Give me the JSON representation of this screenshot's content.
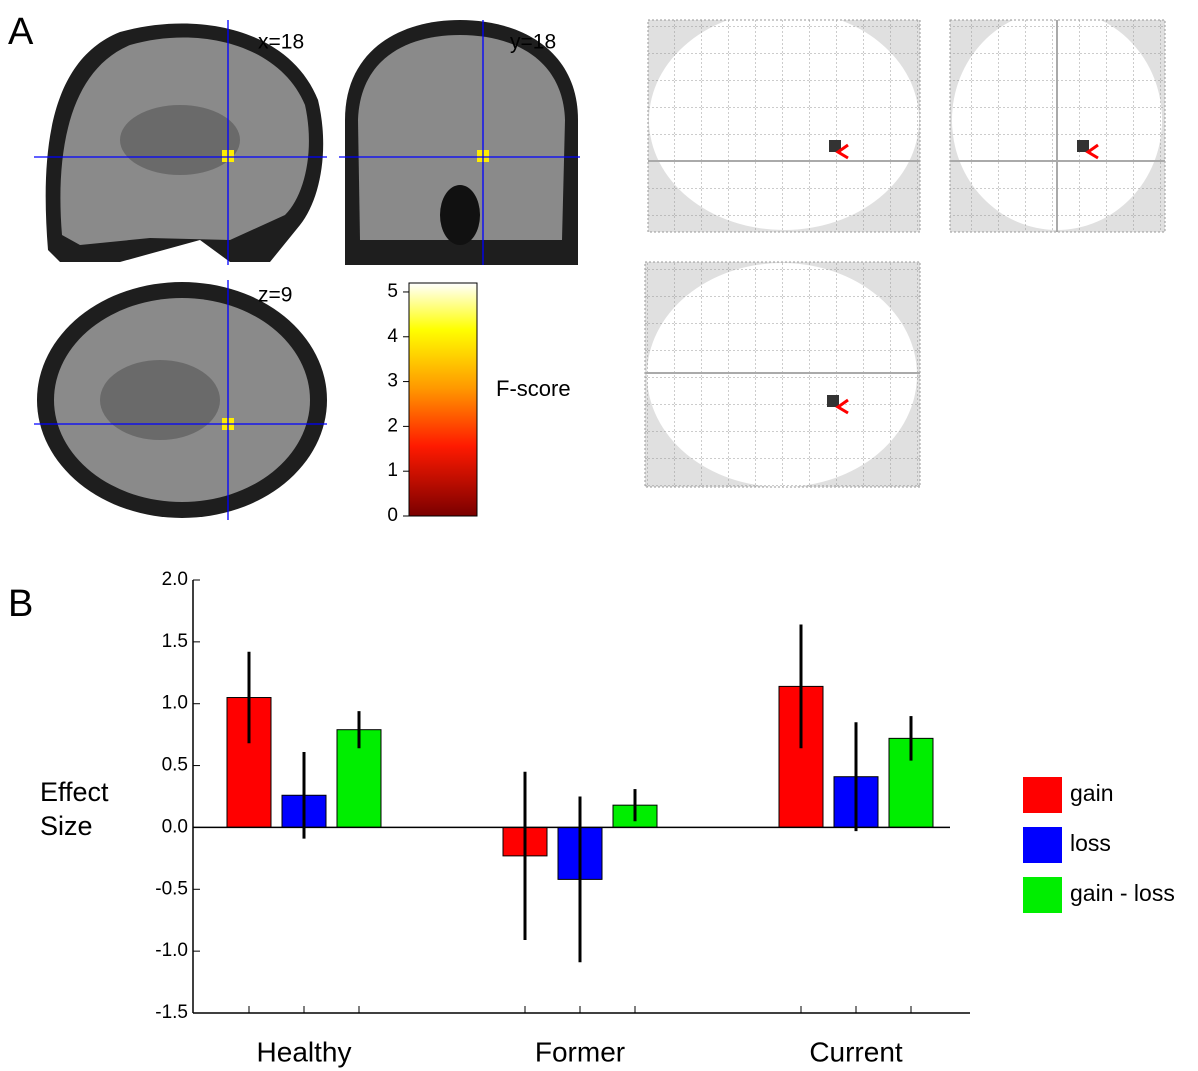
{
  "panel_a": {
    "label": "A",
    "slice_labels": [
      "x=18",
      "y=18",
      "z=9"
    ],
    "colorbar": {
      "label": "F-score",
      "lim": [
        0,
        5.2
      ],
      "ticks": [
        0,
        1,
        2,
        3,
        4,
        5
      ]
    }
  },
  "chart_data": {
    "type": "bar",
    "panel_label": "B",
    "ylabel": "Effect Size",
    "categories": [
      "Healthy",
      "Former",
      "Current"
    ],
    "series": [
      {
        "name": "gain",
        "color": "#ff0000",
        "values": [
          1.05,
          -0.23,
          1.14
        ],
        "errors": [
          0.37,
          0.68,
          0.5
        ]
      },
      {
        "name": "loss",
        "color": "#0000ff",
        "values": [
          0.26,
          -0.42,
          0.41
        ],
        "errors": [
          0.35,
          0.67,
          0.44
        ]
      },
      {
        "name": "gain - loss",
        "color": "#00ee00",
        "values": [
          0.79,
          0.18,
          0.72
        ],
        "errors": [
          0.15,
          0.13,
          0.18
        ]
      }
    ],
    "ylim": [
      -1.5,
      2.0
    ],
    "yticks": [
      {
        "value": -1.5,
        "label": "-1.5"
      },
      {
        "value": -1.0,
        "label": "-1.0"
      },
      {
        "value": -0.5,
        "label": "-0.5"
      },
      {
        "value": 0,
        "label": "0.0"
      },
      {
        "value": 0.5,
        "label": "0.5"
      },
      {
        "value": 1.0,
        "label": "1.0"
      },
      {
        "value": 1.5,
        "label": "1.5"
      },
      {
        "value": 2.0,
        "label": "2.0"
      }
    ]
  }
}
